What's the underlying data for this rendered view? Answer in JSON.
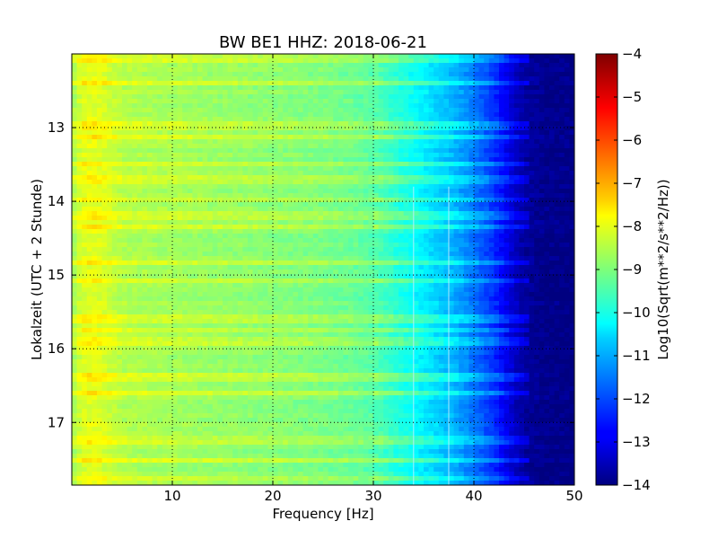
{
  "chart_data": {
    "type": "heatmap",
    "title": "BW BE1 HHZ: 2018-06-21",
    "xlabel": "Frequency [Hz]",
    "ylabel": "Lokalzeit (UTC + 2 Stunde)",
    "xlim": [
      0,
      50
    ],
    "ylim": [
      12.0,
      17.85
    ],
    "y_inverted": true,
    "grid": true,
    "colormap": "jet",
    "x_ticks": [
      10,
      20,
      30,
      40,
      50
    ],
    "x_tick_labels": [
      "10",
      "20",
      "30",
      "40",
      "50"
    ],
    "y_ticks": [
      13,
      14,
      15,
      16,
      17
    ],
    "y_tick_labels": [
      "13",
      "14",
      "15",
      "16",
      "17"
    ],
    "colorbar": {
      "label": "Log10(Sqrt(m**2/s**2/Hz))",
      "range": [
        -14,
        -4
      ],
      "ticks": [
        -4,
        -5,
        -6,
        -7,
        -8,
        -9,
        -10,
        -11,
        -12,
        -13,
        -14
      ],
      "tick_labels": [
        "−4",
        "−5",
        "−6",
        "−7",
        "−8",
        "−9",
        "−10",
        "−11",
        "−12",
        "−13",
        "−14"
      ]
    },
    "spectrum_profile": {
      "frequency": [
        0,
        1,
        2,
        3,
        5,
        8,
        12,
        16,
        20,
        24,
        28,
        30,
        32,
        34,
        36,
        38,
        40,
        42,
        43,
        44,
        45,
        47,
        50
      ],
      "level": [
        -8.7,
        -8.1,
        -8.0,
        -8.1,
        -8.5,
        -8.6,
        -8.7,
        -8.8,
        -8.9,
        -9.0,
        -9.2,
        -9.4,
        -9.8,
        -10.2,
        -10.6,
        -11.0,
        -11.6,
        -12.3,
        -12.8,
        -13.3,
        -13.7,
        -13.9,
        -13.95
      ]
    },
    "energetic_bands_hours": [
      12.07,
      12.4,
      12.98,
      13.14,
      13.5,
      13.72,
      13.98,
      14.18,
      14.35,
      14.82,
      15.08,
      15.6,
      15.75,
      15.9,
      16.4,
      16.6,
      17.24,
      17.5,
      17.75
    ],
    "spectral_line_hz": [
      34.0,
      37.5
    ]
  }
}
